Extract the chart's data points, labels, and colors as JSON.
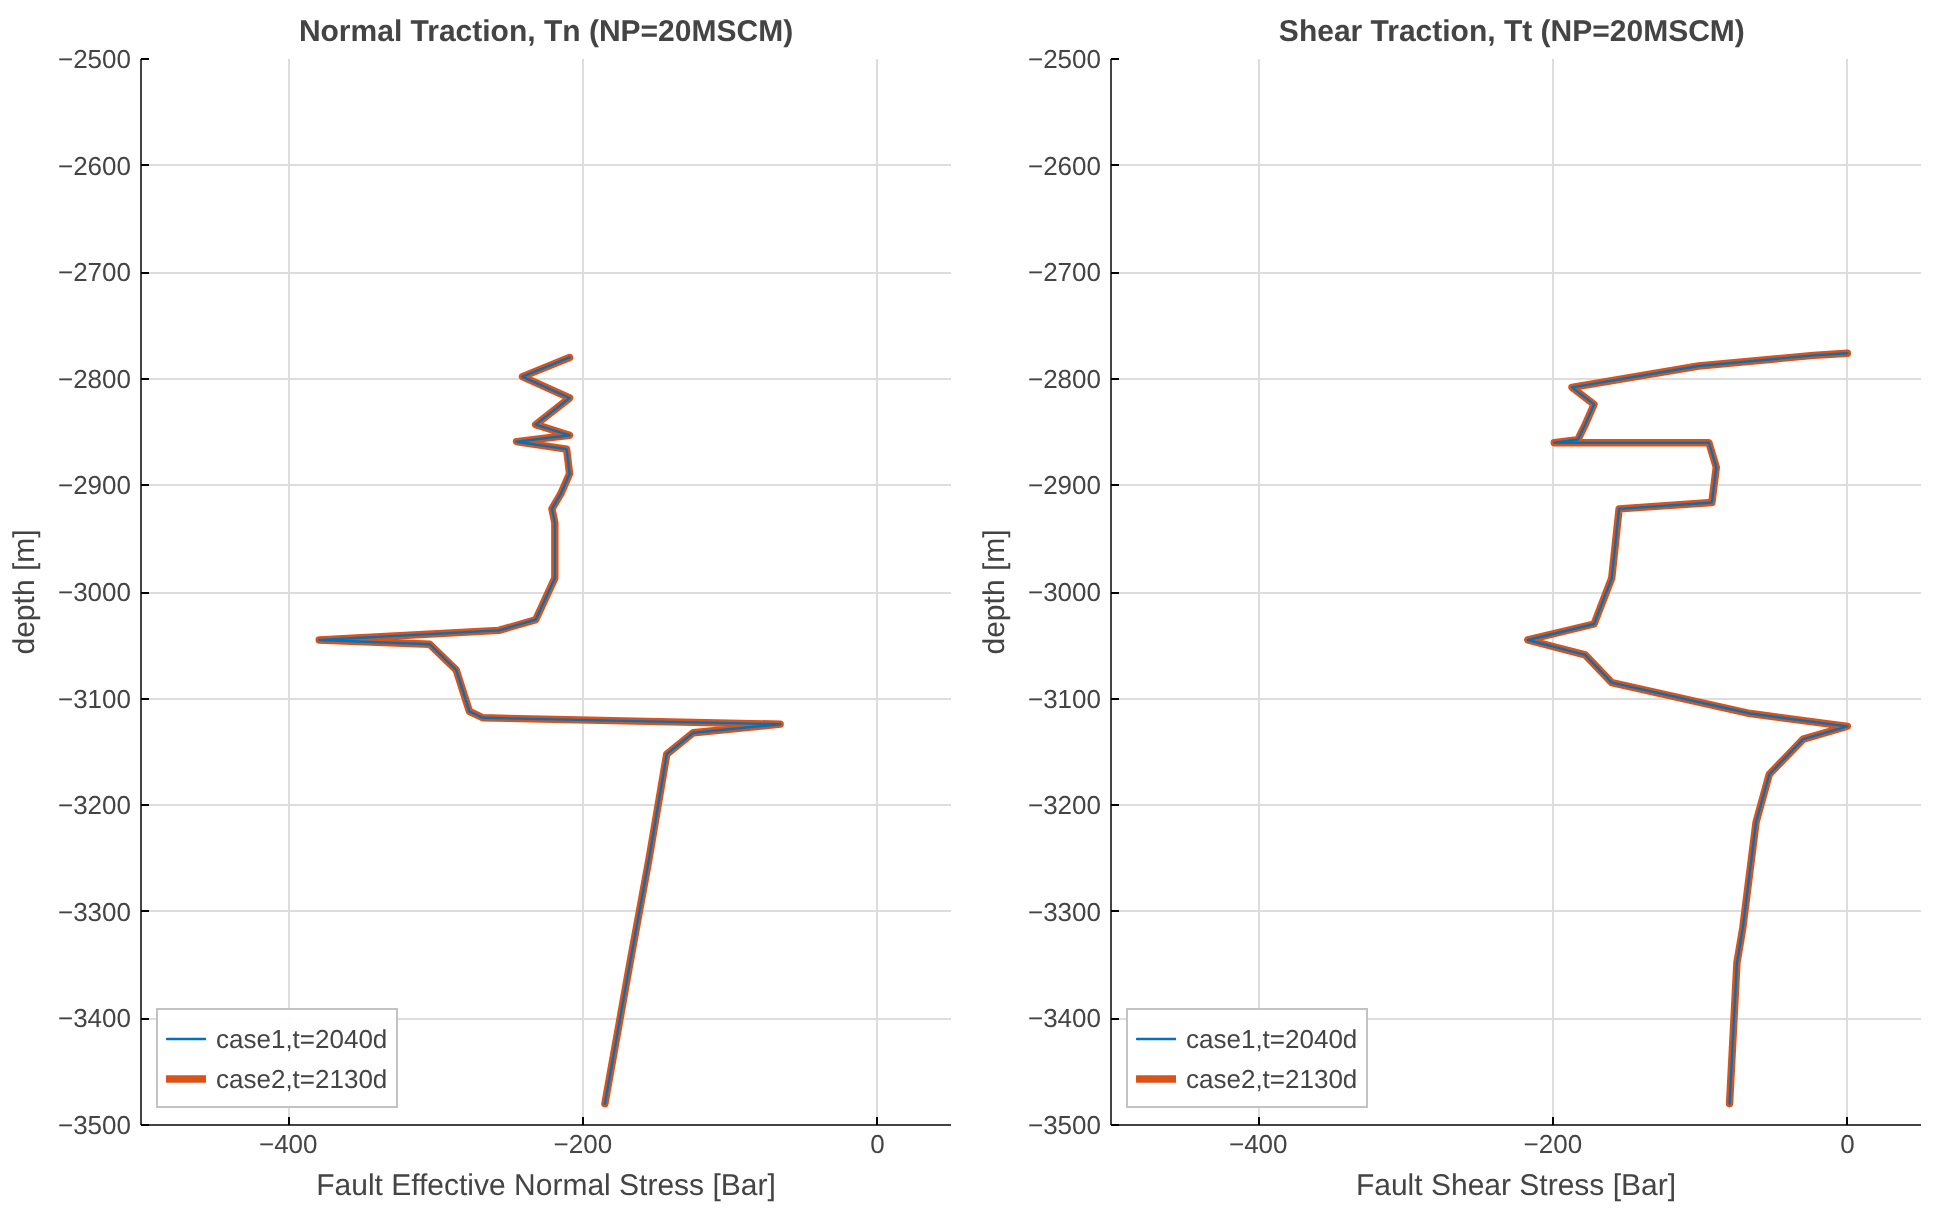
{
  "chart_data": [
    {
      "type": "line",
      "title": "Normal Traction, Tn (NP=20MSCM)",
      "xlabel": "Fault Effective Normal Stress [Bar]",
      "ylabel": "depth [m]",
      "xlim": [
        -500,
        50
      ],
      "xticks": [
        -400,
        -200,
        0
      ],
      "ylim": [
        -3500,
        -2500
      ],
      "yticks": [
        -3500,
        -3400,
        -3300,
        -3200,
        -3100,
        -3000,
        -2900,
        -2800,
        -2700,
        -2600,
        -2500
      ],
      "grid": true,
      "legend": "bottom left",
      "series": [
        {
          "name": "case1,t=2040d",
          "color": "#0072bd",
          "x": [
            -209,
            -241,
            -209,
            -232,
            -209,
            -245,
            -211,
            -209,
            -215,
            -221,
            -219,
            -219,
            -232,
            -257,
            -379,
            -304,
            -286,
            -277,
            -268,
            -66,
            -125,
            -143,
            -155,
            -168,
            -185
          ],
          "values": [
            -2780,
            -2798,
            -2818,
            -2843,
            -2853,
            -2859,
            -2866,
            -2889,
            -2908,
            -2922,
            -2935,
            -2987,
            -3026,
            -3036,
            -3045,
            -3049,
            -3073,
            -3112,
            -3118,
            -3124,
            -3132,
            -3152,
            -3250,
            -3348,
            -3480
          ]
        },
        {
          "name": "case2,t=2130d",
          "color": "#d95319",
          "x": [
            -209,
            -241,
            -209,
            -232,
            -209,
            -245,
            -211,
            -209,
            -215,
            -221,
            -219,
            -219,
            -232,
            -257,
            -379,
            -304,
            -286,
            -277,
            -268,
            -66,
            -125,
            -143,
            -155,
            -168,
            -185
          ],
          "values": [
            -2780,
            -2798,
            -2818,
            -2843,
            -2853,
            -2859,
            -2866,
            -2889,
            -2908,
            -2922,
            -2935,
            -2987,
            -3026,
            -3036,
            -3045,
            -3049,
            -3073,
            -3112,
            -3118,
            -3124,
            -3132,
            -3152,
            -3250,
            -3348,
            -3480
          ]
        }
      ]
    },
    {
      "type": "line",
      "title": "Shear Traction, Tt  (NP=20MSCM)",
      "xlabel": "Fault Shear Stress [Bar]",
      "ylabel": "depth [m]",
      "xlim": [
        -500,
        50
      ],
      "xticks": [
        -400,
        -200,
        0
      ],
      "ylim": [
        -3500,
        -2500
      ],
      "yticks": [
        -3500,
        -3400,
        -3300,
        -3200,
        -3100,
        -3000,
        -2900,
        -2800,
        -2700,
        -2600,
        -2500
      ],
      "grid": true,
      "legend": "bottom left",
      "series": [
        {
          "name": "case1,t=2040d",
          "color": "#0072bd",
          "x": [
            0,
            -23,
            -101,
            -187,
            -172,
            -178,
            -183,
            -199,
            -94,
            -89,
            -92,
            -155,
            -160,
            -172,
            -217,
            -178,
            -160,
            -66,
            0,
            -30,
            -53,
            -62,
            -71,
            -75,
            -80
          ],
          "values": [
            -2776,
            -2778,
            -2788,
            -2808,
            -2824,
            -2843,
            -2857,
            -2860,
            -2860,
            -2883,
            -2916,
            -2922,
            -2987,
            -3030,
            -3045,
            -3059,
            -3085,
            -3114,
            -3126,
            -3138,
            -3171,
            -3216,
            -3315,
            -3348,
            -3480
          ]
        },
        {
          "name": "case2,t=2130d",
          "color": "#d95319",
          "x": [
            0,
            -23,
            -101,
            -187,
            -172,
            -178,
            -183,
            -199,
            -94,
            -89,
            -92,
            -155,
            -160,
            -172,
            -217,
            -178,
            -160,
            -66,
            0,
            -30,
            -53,
            -62,
            -71,
            -75,
            -80
          ],
          "values": [
            -2776,
            -2778,
            -2788,
            -2808,
            -2824,
            -2843,
            -2857,
            -2860,
            -2860,
            -2883,
            -2916,
            -2922,
            -2987,
            -3030,
            -3045,
            -3059,
            -3085,
            -3114,
            -3126,
            -3138,
            -3171,
            -3216,
            -3315,
            -3348,
            -3480
          ]
        }
      ]
    }
  ]
}
